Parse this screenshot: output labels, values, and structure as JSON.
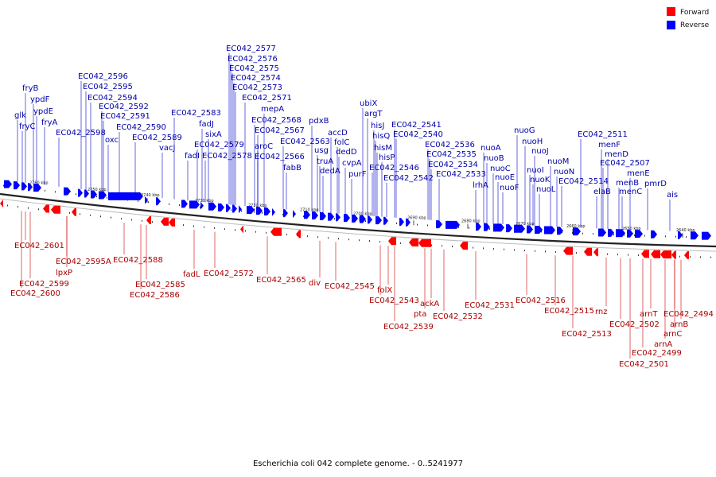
{
  "legend": [
    {
      "label": "Forward",
      "color": "#ff0000"
    },
    {
      "label": "Reverse",
      "color": "#0000ff"
    }
  ],
  "caption": "Escherichia coli 042 complete genome. - 0..5241977",
  "tick_labels": [
    "2760 kbp",
    "2750 kbp",
    "2740 kbp",
    "2730 kbp",
    "2720 kbp",
    "2710 kbp",
    "2700 kbp",
    "2690 kbp",
    "2680 kbp",
    "2670 kbp",
    "2660 kbp",
    "2650 kbp",
    "2640 kbp"
  ],
  "reverse_labels": [
    "glk",
    "fryC",
    "fryB",
    "ypdF",
    "ypdE",
    "fryA",
    "EC042_2598",
    "oxc",
    "EC042_2596",
    "EC042_2595",
    "EC042_2594",
    "EC042_2592",
    "EC042_2591",
    "EC042_2590",
    "EC042_2589",
    "vacJ",
    "EC042_2583",
    "fadJ",
    "fadI",
    "sixA",
    "EC042_2579",
    "EC042_2578",
    "EC042_2577",
    "EC042_2576",
    "EC042_2575",
    "EC042_2574",
    "EC042_2573",
    "EC042_2571",
    "mepA",
    "EC042_2568",
    "EC042_2567",
    "aroC",
    "EC042_2566",
    "EC042_2563",
    "fabB",
    "pdxB",
    "usg",
    "truA",
    "dedA",
    "accD",
    "folC",
    "dedD",
    "cvpA",
    "purF",
    "ubiX",
    "argT",
    "hisJ",
    "hisQ",
    "hisM",
    "hisP",
    "EC042_2546",
    "EC042_2542",
    "EC042_2541",
    "EC042_2540",
    "EC042_2536",
    "EC042_2535",
    "EC042_2534",
    "EC042_2533",
    "lrhA",
    "nuoA",
    "nuoB",
    "nuoC",
    "nuoE",
    "nuoF",
    "nuoG",
    "nuoH",
    "nuoJ",
    "nuoI",
    "nuoK",
    "nuoL",
    "nuoM",
    "nuoN",
    "EC042_2514",
    "EC042_2511",
    "menF",
    "menD",
    "EC042_2507",
    "elaB",
    "menE",
    "menB",
    "menC",
    "pmrD",
    "ais"
  ],
  "forward_labels": [
    "EC042_2601",
    "EC042_2599",
    "EC042_2600",
    "lpxP",
    "EC042_2595A",
    "EC042_2588",
    "EC042_2585",
    "EC042_2586",
    "fadL",
    "EC042_2572",
    "EC042_2565",
    "div",
    "EC042_2545",
    "folX",
    "EC042_2543",
    "EC042_2539",
    "pta",
    "ackA",
    "EC042_2532",
    "EC042_2531",
    "EC042_2516",
    "EC042_2515",
    "EC042_2513",
    "rnz",
    "EC042_2502",
    "arnT",
    "EC042_2499",
    "EC042_2501",
    "arnA",
    "arnC",
    "arnB",
    "EC042_2494"
  ]
}
